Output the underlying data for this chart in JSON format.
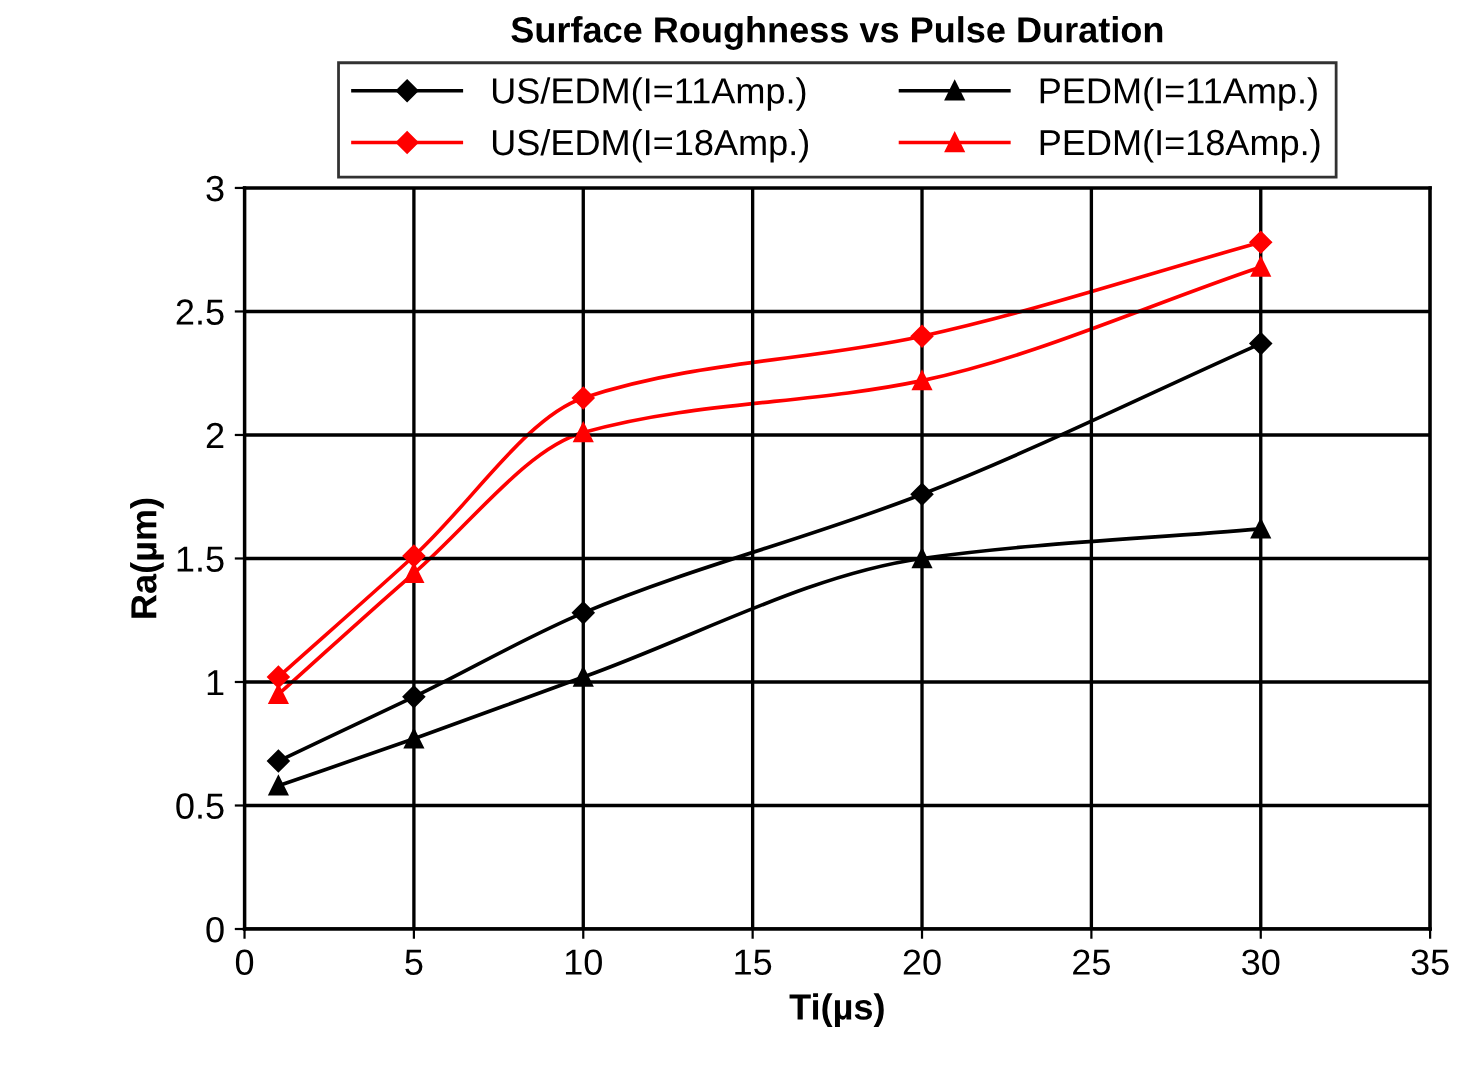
{
  "chart_data": {
    "type": "line",
    "title": "Surface Roughness vs Pulse Duration",
    "xlabel": "Ti(µs)",
    "ylabel": "Ra(µm)",
    "x": [
      1,
      5,
      10,
      20,
      30
    ],
    "series": [
      {
        "name": "US/EDM(I=11Amp.)",
        "color": "#000000",
        "marker": "diamond",
        "values": [
          0.68,
          0.94,
          1.28,
          1.76,
          2.37
        ]
      },
      {
        "name": "US/EDM(I=18Amp.)",
        "color": "#ff0000",
        "marker": "diamond",
        "values": [
          1.02,
          1.51,
          2.15,
          2.4,
          2.78
        ]
      },
      {
        "name": "PEDM(I=11Amp.)",
        "color": "#000000",
        "marker": "triangle",
        "values": [
          0.58,
          0.77,
          1.02,
          1.5,
          1.62
        ]
      },
      {
        "name": "PEDM(I=18Amp.)",
        "color": "#ff0000",
        "marker": "triangle",
        "values": [
          0.95,
          1.44,
          2.01,
          2.22,
          2.68
        ]
      }
    ],
    "xlim": [
      0,
      35
    ],
    "xticks": [
      0,
      5,
      10,
      15,
      20,
      25,
      30,
      35
    ],
    "ylim": [
      0,
      3
    ],
    "yticks": [
      0,
      0.5,
      1,
      1.5,
      2,
      2.5,
      3
    ],
    "grid": true,
    "legend": "top",
    "line_style": "solid"
  }
}
